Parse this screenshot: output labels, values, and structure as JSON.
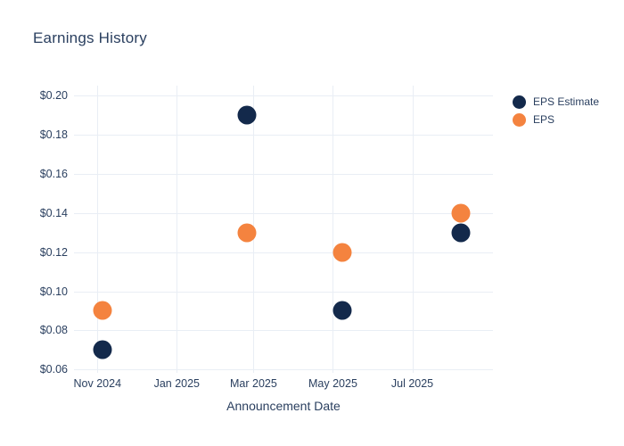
{
  "chart_data": {
    "type": "scatter",
    "title": "Earnings History",
    "xlabel": "Announcement Date",
    "ylabel": "",
    "grid": true,
    "legend_position": "right",
    "x_range": [
      "2024-10-14",
      "2025-09-01"
    ],
    "ylim": [
      0.0584,
      0.2048
    ],
    "yticks": [
      {
        "value": 0.06,
        "label": "$0.06"
      },
      {
        "value": 0.08,
        "label": "$0.08"
      },
      {
        "value": 0.1,
        "label": "$0.10"
      },
      {
        "value": 0.12,
        "label": "$0.12"
      },
      {
        "value": 0.14,
        "label": "$0.14"
      },
      {
        "value": 0.16,
        "label": "$0.16"
      },
      {
        "value": 0.18,
        "label": "$0.18"
      },
      {
        "value": 0.2,
        "label": "$0.20"
      }
    ],
    "xticks": [
      {
        "date": "2024-11-01",
        "label": "Nov 2024"
      },
      {
        "date": "2025-01-01",
        "label": "Jan 2025"
      },
      {
        "date": "2025-03-01",
        "label": "Mar 2025"
      },
      {
        "date": "2025-05-01",
        "label": "May 2025"
      },
      {
        "date": "2025-07-01",
        "label": "Jul 2025"
      }
    ],
    "series": [
      {
        "name": "EPS Estimate",
        "color": "#13294b",
        "points": [
          {
            "date": "2024-11-05",
            "value": 0.07
          },
          {
            "date": "2025-02-24",
            "value": 0.19
          },
          {
            "date": "2025-05-08",
            "value": 0.09
          },
          {
            "date": "2025-08-07",
            "value": 0.13
          }
        ]
      },
      {
        "name": "EPS",
        "color": "#f4833f",
        "points": [
          {
            "date": "2024-11-05",
            "value": 0.09
          },
          {
            "date": "2025-02-24",
            "value": 0.13
          },
          {
            "date": "2025-05-08",
            "value": 0.12
          },
          {
            "date": "2025-08-07",
            "value": 0.14
          }
        ]
      }
    ],
    "colors": {
      "text": "#2a3f5f",
      "grid": "#e9eef5",
      "background": "#ffffff"
    }
  }
}
